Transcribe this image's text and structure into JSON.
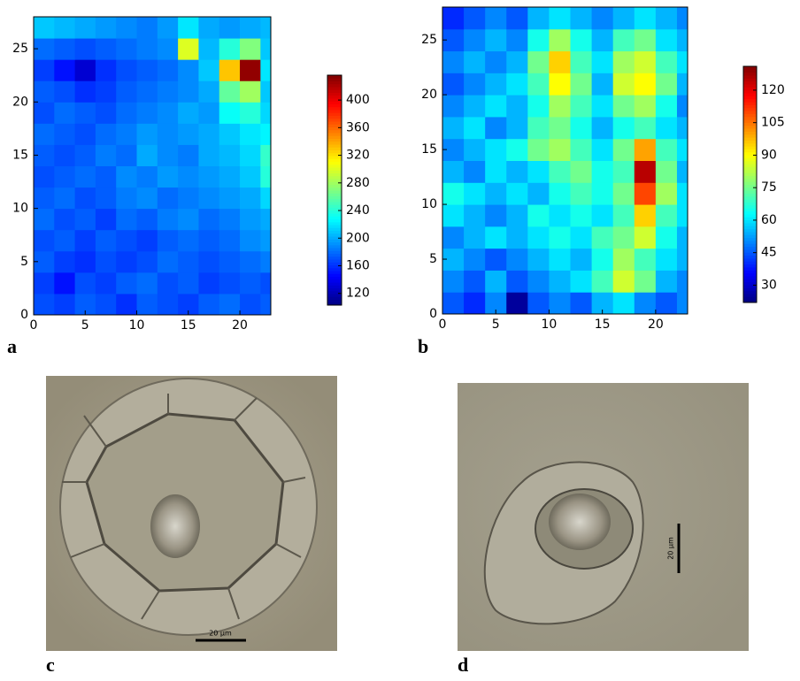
{
  "chart_data": [
    {
      "type": "heatmap",
      "label": "a",
      "colormap": "jet",
      "xlim": [
        0,
        23
      ],
      "ylim": [
        0,
        28
      ],
      "xticks": [
        0,
        5,
        10,
        15,
        20
      ],
      "yticks": [
        0,
        5,
        10,
        15,
        20,
        25
      ],
      "x_edges": [
        0,
        2,
        4,
        6,
        8,
        10,
        12,
        14,
        16,
        18,
        20,
        22,
        23
      ],
      "y_edges": [
        0,
        2,
        4,
        6,
        8,
        10,
        12,
        14,
        16,
        18,
        20,
        22,
        24,
        26,
        28
      ],
      "values": [
        [
          170,
          165,
          175,
          170,
          160,
          175,
          170,
          165,
          175,
          180,
          170,
          175
        ],
        [
          165,
          150,
          170,
          165,
          175,
          180,
          170,
          175,
          165,
          170,
          175,
          170
        ],
        [
          175,
          165,
          160,
          170,
          165,
          170,
          180,
          175,
          170,
          175,
          180,
          185
        ],
        [
          170,
          175,
          165,
          175,
          170,
          165,
          175,
          180,
          175,
          180,
          190,
          195
        ],
        [
          180,
          170,
          175,
          165,
          180,
          175,
          185,
          190,
          180,
          185,
          195,
          200
        ],
        [
          175,
          180,
          170,
          175,
          185,
          190,
          180,
          185,
          190,
          195,
          200,
          215
        ],
        [
          170,
          175,
          180,
          175,
          190,
          185,
          195,
          190,
          195,
          200,
          210,
          240
        ],
        [
          175,
          170,
          175,
          185,
          180,
          200,
          190,
          185,
          200,
          205,
          215,
          245
        ],
        [
          180,
          175,
          170,
          180,
          185,
          195,
          190,
          195,
          200,
          210,
          220,
          225
        ],
        [
          170,
          180,
          175,
          170,
          180,
          185,
          190,
          200,
          195,
          230,
          240,
          215
        ],
        [
          175,
          170,
          160,
          165,
          175,
          180,
          185,
          190,
          200,
          260,
          280,
          210
        ],
        [
          165,
          150,
          130,
          160,
          170,
          175,
          180,
          190,
          210,
          330,
          430,
          220
        ],
        [
          180,
          175,
          170,
          175,
          180,
          185,
          190,
          300,
          205,
          240,
          270,
          210
        ],
        [
          210,
          205,
          200,
          195,
          190,
          185,
          195,
          220,
          200,
          195,
          200,
          205
        ]
      ],
      "clim": [
        103,
        436
      ],
      "cticks": [
        120,
        160,
        200,
        240,
        280,
        320,
        360,
        400
      ]
    },
    {
      "type": "heatmap",
      "label": "b",
      "colormap": "jet",
      "xlim": [
        0,
        23
      ],
      "ylim": [
        0,
        28
      ],
      "xticks": [
        0,
        5,
        10,
        15,
        20
      ],
      "yticks": [
        0,
        5,
        10,
        15,
        20,
        25
      ],
      "x_edges": [
        0,
        2,
        4,
        6,
        8,
        10,
        12,
        14,
        16,
        18,
        20,
        22,
        23
      ],
      "y_edges": [
        0,
        2,
        4,
        6,
        8,
        10,
        12,
        14,
        16,
        18,
        20,
        22,
        24,
        26,
        28
      ],
      "values": [
        [
          45,
          40,
          50,
          25,
          45,
          50,
          45,
          55,
          60,
          50,
          45,
          50
        ],
        [
          50,
          45,
          55,
          45,
          50,
          55,
          60,
          70,
          85,
          75,
          55,
          50
        ],
        [
          55,
          50,
          45,
          50,
          55,
          60,
          55,
          65,
          80,
          70,
          60,
          55
        ],
        [
          50,
          55,
          60,
          55,
          60,
          65,
          60,
          70,
          75,
          85,
          65,
          55
        ],
        [
          60,
          55,
          50,
          55,
          65,
          60,
          65,
          60,
          70,
          95,
          70,
          60
        ],
        [
          65,
          60,
          55,
          60,
          55,
          65,
          70,
          65,
          75,
          110,
          80,
          60
        ],
        [
          55,
          50,
          60,
          55,
          60,
          70,
          75,
          65,
          70,
          125,
          75,
          55
        ],
        [
          50,
          55,
          60,
          65,
          75,
          80,
          70,
          60,
          75,
          100,
          70,
          60
        ],
        [
          55,
          60,
          50,
          55,
          70,
          75,
          65,
          55,
          65,
          70,
          60,
          55
        ],
        [
          50,
          55,
          60,
          55,
          65,
          80,
          70,
          60,
          75,
          80,
          65,
          50
        ],
        [
          45,
          50,
          55,
          60,
          70,
          90,
          75,
          55,
          85,
          90,
          75,
          55
        ],
        [
          50,
          55,
          50,
          55,
          75,
          95,
          70,
          60,
          80,
          85,
          70,
          60
        ],
        [
          45,
          50,
          55,
          50,
          65,
          80,
          65,
          55,
          70,
          75,
          60,
          55
        ],
        [
          40,
          45,
          50,
          45,
          55,
          60,
          55,
          50,
          55,
          60,
          55,
          50
        ]
      ],
      "clim": [
        22,
        131
      ],
      "cticks": [
        30,
        45,
        60,
        75,
        90,
        105,
        120
      ]
    }
  ],
  "photos": [
    {
      "label": "c",
      "scale_bar": "20 μm"
    },
    {
      "label": "d",
      "scale_bar": "20 μm"
    }
  ]
}
